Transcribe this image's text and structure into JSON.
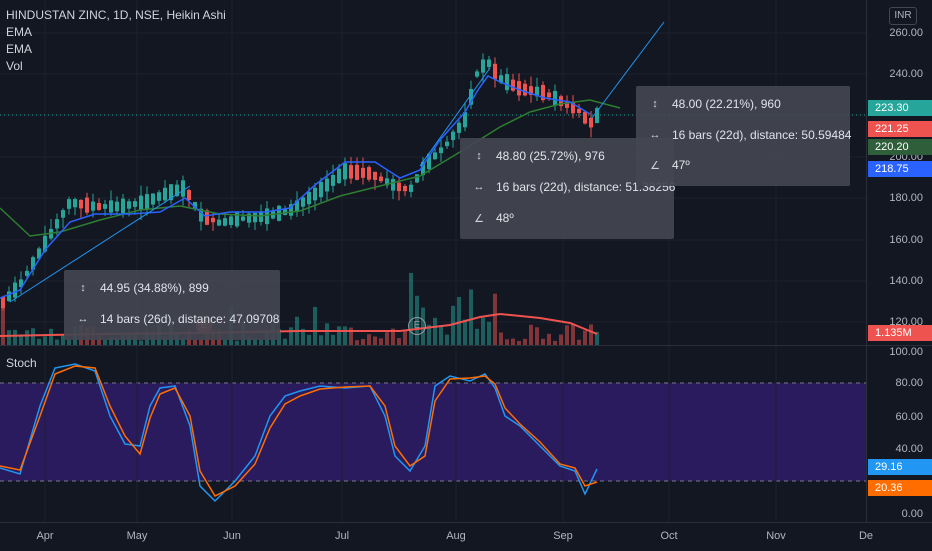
{
  "header": {
    "symbol_line": "HINDUSTAN ZINC, 1D, NSE, Heikin Ashi",
    "indicators": [
      "EMA",
      "EMA",
      "Vol"
    ],
    "currency": "INR"
  },
  "stoch_pane": {
    "label": "Stoch"
  },
  "price_scale": {
    "ticks": [
      "260.00",
      "240.00",
      "200.00",
      "180.00",
      "160.00",
      "140.00",
      "120.00"
    ],
    "badges": [
      {
        "text": "223.30",
        "color": "#26a69a"
      },
      {
        "text": "221.25",
        "color": "#ef5350"
      },
      {
        "text": "220.20",
        "color": "#2f5f3a"
      },
      {
        "text": "218.75",
        "color": "#2962ff"
      },
      {
        "text": "1.135M",
        "color": "#ef5350"
      }
    ]
  },
  "stoch_scale": {
    "ticks": [
      "100.00",
      "80.00",
      "60.00",
      "40.00",
      "0.00"
    ],
    "badges": [
      {
        "text": "29.16",
        "color": "#2196f3"
      },
      {
        "text": "20.36",
        "color": "#ff6d00"
      }
    ]
  },
  "time_axis": {
    "labels": [
      "Apr",
      "May",
      "Jun",
      "Jul",
      "Aug",
      "Sep",
      "Oct",
      "Nov",
      "De"
    ]
  },
  "measure_tooltips": [
    {
      "range": "44.95 (34.88%), 899",
      "bars": "14 bars (26d), distance: 47.09708",
      "angle": ""
    },
    {
      "range": "48.80 (25.72%), 976",
      "bars": "16 bars (22d), distance: 51.38256",
      "angle": "48º"
    },
    {
      "range": "48.00 (22.21%), 960",
      "bars": "16 bars (22d), distance: 50.59484",
      "angle": "47º"
    }
  ],
  "markers": [
    "E",
    "E"
  ],
  "colors": {
    "up": "#26a69a",
    "down": "#ef5350",
    "ema_fast": "#2962ff",
    "ema_slow": "#2e7d32",
    "stoch_k": "#2196f3",
    "stoch_d": "#ff6d00",
    "stoch_band": "#2a1a5e"
  }
}
